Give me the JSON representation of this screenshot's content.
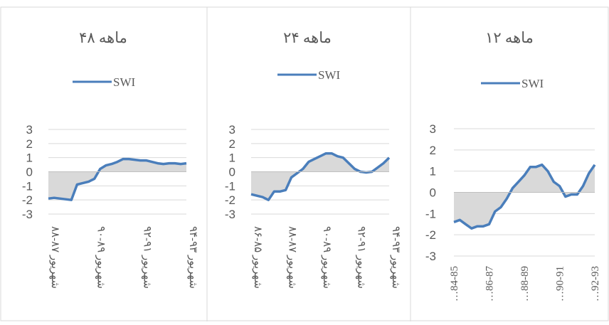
{
  "chart_data": [
    {
      "type": "line",
      "title": "۴۸ ماهه",
      "categories": [
        "شهریور ۸۷-۸۸",
        null,
        null,
        null,
        null,
        null,
        null,
        null,
        "شهریور ۸۹-۹۰",
        null,
        null,
        null,
        null,
        null,
        null,
        null,
        "شهریور ۹۱-۹۲",
        null,
        null,
        null,
        null,
        null,
        null,
        null,
        "شهریور ۹۳-۹۴"
      ],
      "series": [
        {
          "name": "SWI",
          "color": "#4a7ebb",
          "values": [
            -1.9,
            -1.85,
            -1.9,
            -1.95,
            -2.0,
            -0.9,
            -0.8,
            -0.7,
            -0.5,
            0.2,
            0.45,
            0.55,
            0.7,
            0.9,
            0.9,
            0.85,
            0.8,
            0.8,
            0.7,
            0.6,
            0.55,
            0.6,
            0.6,
            0.55,
            0.6
          ]
        }
      ],
      "area_color": "#d9d9d9",
      "ylim": [
        -3,
        3
      ],
      "yticks": [
        3,
        2,
        1,
        0,
        -1,
        -2,
        -3
      ],
      "grid": true
    },
    {
      "type": "line",
      "title": "۲۴ ماهه",
      "categories": [
        "شهریور ۸۵-۸۶",
        null,
        null,
        null,
        null,
        null,
        "شهریور ۸۷-۸۸",
        null,
        null,
        null,
        null,
        null,
        "شهریور ۸۹-۹۰",
        null,
        null,
        null,
        null,
        null,
        "شهریور ۹۱-۹۲",
        null,
        null,
        null,
        null,
        null,
        "شهریور ۹۳-۹۴"
      ],
      "series": [
        {
          "name": "SWI",
          "color": "#4a7ebb",
          "values": [
            -1.6,
            -1.7,
            -1.8,
            -2.0,
            -1.4,
            -1.4,
            -1.3,
            -0.4,
            -0.1,
            0.2,
            0.7,
            0.9,
            1.1,
            1.3,
            1.3,
            1.1,
            1.0,
            0.6,
            0.2,
            0.0,
            -0.05,
            0.0,
            0.3,
            0.6,
            1.0
          ]
        }
      ],
      "area_color": "#d9d9d9",
      "ylim": [
        -3,
        3
      ],
      "yticks": [
        3,
        2,
        1,
        0,
        -1,
        -2,
        -3
      ],
      "grid": true
    },
    {
      "type": "line",
      "title": "۱۲ ماهه",
      "categories": [
        "…84-85",
        null,
        null,
        null,
        null,
        null,
        "…86-87",
        null,
        null,
        null,
        null,
        null,
        "…88-89",
        null,
        null,
        null,
        null,
        null,
        "…90-91",
        null,
        null,
        null,
        null,
        null,
        "…92-93"
      ],
      "series": [
        {
          "name": "SWI",
          "color": "#4a7ebb",
          "values": [
            -1.4,
            -1.3,
            -1.5,
            -1.7,
            -1.6,
            -1.6,
            -1.5,
            -0.9,
            -0.7,
            -0.3,
            0.2,
            0.5,
            0.8,
            1.2,
            1.2,
            1.3,
            1.0,
            0.5,
            0.3,
            -0.2,
            -0.1,
            -0.1,
            0.3,
            0.9,
            1.3
          ]
        }
      ],
      "area_color": "#d9d9d9",
      "ylim": [
        -3,
        3
      ],
      "yticks": [
        3,
        2,
        1,
        0,
        -1,
        -2,
        -3
      ],
      "grid": true
    }
  ]
}
